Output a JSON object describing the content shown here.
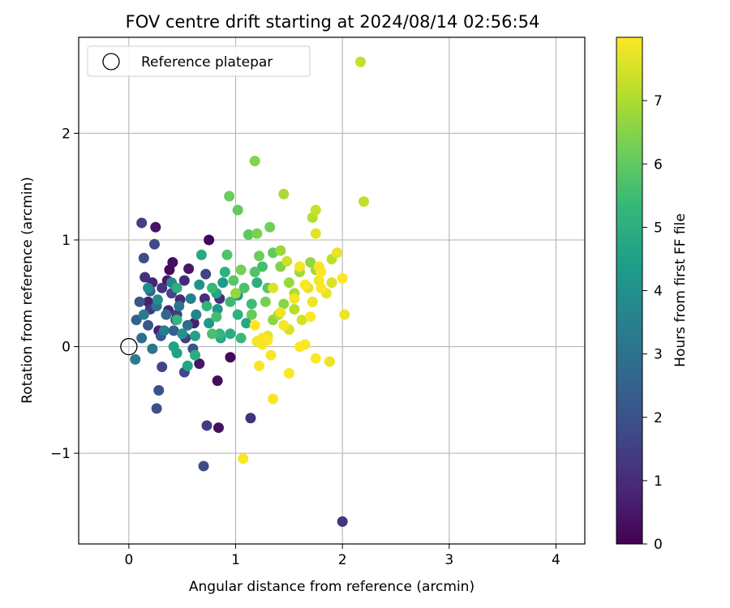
{
  "chart_data": {
    "type": "scatter",
    "title": "FOV centre drift starting at 2024/08/14 02:56:54",
    "xlabel": "Angular distance from reference (arcmin)",
    "ylabel": "Rotation from reference (arcmin)",
    "xlim": [
      -0.47,
      4.27
    ],
    "ylim": [
      -1.85,
      2.9
    ],
    "xticks": [
      0,
      1,
      2,
      3,
      4
    ],
    "xtick_labels": [
      "0",
      "1",
      "2",
      "3",
      "4"
    ],
    "yticks": [
      -1,
      0,
      1,
      2
    ],
    "ytick_labels": [
      "−1",
      "0",
      "1",
      "2"
    ],
    "grid": true,
    "legend": {
      "placement": "top-left",
      "entries": [
        "Reference platepar"
      ]
    },
    "reference_point": {
      "label": "Reference platepar",
      "x": 0,
      "y": 0
    },
    "colorbar": {
      "label": "Hours from first FF file",
      "range": [
        0,
        8.0
      ],
      "ticks": [
        0,
        1,
        2,
        3,
        4,
        5,
        6,
        7
      ],
      "tick_labels": [
        "0",
        "1",
        "2",
        "3",
        "4",
        "5",
        "6",
        "7"
      ],
      "colormap": "viridis"
    },
    "points": [
      [
        0.75,
        1.0,
        0.1
      ],
      [
        0.38,
        0.72,
        0.2
      ],
      [
        0.41,
        0.79,
        0.3
      ],
      [
        0.25,
        1.12,
        0.4
      ],
      [
        0.56,
        0.73,
        0.5
      ],
      [
        0.36,
        0.62,
        0.6
      ],
      [
        0.18,
        0.42,
        0.7
      ],
      [
        0.22,
        0.6,
        0.8
      ],
      [
        0.48,
        0.44,
        0.9
      ],
      [
        0.85,
        0.45,
        1.0
      ],
      [
        0.95,
        -0.1,
        0.15
      ],
      [
        0.83,
        -0.32,
        0.25
      ],
      [
        0.84,
        -0.76,
        0.35
      ],
      [
        0.66,
        -0.16,
        0.45
      ],
      [
        0.44,
        0.25,
        0.55
      ],
      [
        0.61,
        0.22,
        0.65
      ],
      [
        0.28,
        0.15,
        0.75
      ],
      [
        0.37,
        0.34,
        0.85
      ],
      [
        0.52,
        0.62,
        0.95
      ],
      [
        0.71,
        0.45,
        1.05
      ],
      [
        0.15,
        0.65,
        1.1
      ],
      [
        0.31,
        0.55,
        1.2
      ],
      [
        0.2,
        0.35,
        1.3
      ],
      [
        0.53,
        0.08,
        1.4
      ],
      [
        0.45,
        0.3,
        1.5
      ],
      [
        0.72,
        0.68,
        1.6
      ],
      [
        0.4,
        0.5,
        1.7
      ],
      [
        0.24,
        0.96,
        1.8
      ],
      [
        0.14,
        0.83,
        1.9
      ],
      [
        0.6,
        -0.02,
        2.0
      ],
      [
        1.14,
        -0.67,
        1.15
      ],
      [
        2.0,
        -1.64,
        1.25
      ],
      [
        0.73,
        -0.74,
        1.45
      ],
      [
        0.12,
        1.16,
        1.55
      ],
      [
        0.31,
        -0.19,
        1.65
      ],
      [
        0.52,
        -0.24,
        1.75
      ],
      [
        0.7,
        -1.12,
        1.85
      ],
      [
        0.26,
        -0.58,
        1.95
      ],
      [
        0.28,
        -0.41,
        2.05
      ],
      [
        0.1,
        0.42,
        2.15
      ],
      [
        0.18,
        0.2,
        2.2
      ],
      [
        0.3,
        0.1,
        2.3
      ],
      [
        0.42,
        0.15,
        2.4
      ],
      [
        0.07,
        0.25,
        2.5
      ],
      [
        0.2,
        0.52,
        2.6
      ],
      [
        0.35,
        0.3,
        2.7
      ],
      [
        0.55,
        0.2,
        2.8
      ],
      [
        0.12,
        0.08,
        2.9
      ],
      [
        0.26,
        0.38,
        3.0
      ],
      [
        0.47,
        0.38,
        3.1
      ],
      [
        0.22,
        -0.02,
        3.2
      ],
      [
        0.14,
        0.3,
        3.3
      ],
      [
        0.06,
        -0.12,
        3.35
      ],
      [
        0.33,
        0.15,
        3.4
      ],
      [
        0.58,
        0.45,
        3.5
      ],
      [
        0.63,
        0.3,
        3.6
      ],
      [
        0.4,
        0.6,
        3.7
      ],
      [
        0.18,
        0.55,
        3.8
      ],
      [
        0.27,
        0.44,
        3.9
      ],
      [
        0.5,
        0.12,
        4.0
      ],
      [
        0.66,
        0.58,
        4.1
      ],
      [
        0.83,
        0.35,
        4.2
      ],
      [
        0.75,
        0.22,
        4.3
      ],
      [
        0.88,
        0.6,
        4.35
      ],
      [
        1.02,
        0.48,
        4.4
      ],
      [
        0.45,
        -0.06,
        4.5
      ],
      [
        0.62,
        0.1,
        4.55
      ],
      [
        0.42,
        0.0,
        4.6
      ],
      [
        0.82,
        0.5,
        4.65
      ],
      [
        0.55,
        -0.18,
        4.7
      ],
      [
        1.1,
        0.22,
        4.75
      ],
      [
        0.86,
        0.08,
        4.8
      ],
      [
        0.68,
        0.86,
        4.85
      ],
      [
        0.95,
        0.12,
        4.9
      ],
      [
        0.62,
        -0.08,
        4.95
      ],
      [
        1.2,
        0.6,
        5.0
      ],
      [
        0.45,
        0.55,
        5.05
      ],
      [
        0.9,
        0.7,
        5.1
      ],
      [
        1.02,
        0.3,
        5.15
      ],
      [
        0.73,
        0.38,
        5.2
      ],
      [
        0.85,
        0.12,
        5.25
      ],
      [
        0.45,
        0.25,
        5.3
      ],
      [
        0.78,
        0.55,
        5.35
      ],
      [
        1.05,
        0.08,
        5.4
      ],
      [
        0.95,
        0.42,
        5.45
      ],
      [
        1.15,
        0.4,
        5.5
      ],
      [
        0.82,
        0.28,
        5.55
      ],
      [
        1.25,
        0.75,
        5.6
      ],
      [
        0.78,
        0.12,
        5.65
      ],
      [
        1.08,
        0.55,
        5.7
      ],
      [
        0.92,
        0.86,
        5.75
      ],
      [
        1.18,
        0.7,
        5.8
      ],
      [
        1.3,
        0.55,
        5.85
      ],
      [
        0.98,
        0.62,
        5.9
      ],
      [
        1.12,
        1.05,
        5.95
      ],
      [
        1.35,
        0.88,
        6.0
      ],
      [
        1.02,
        1.28,
        6.05
      ],
      [
        1.15,
        0.3,
        6.1
      ],
      [
        0.94,
        1.41,
        6.15
      ],
      [
        1.22,
        0.85,
        6.2
      ],
      [
        1.32,
        1.12,
        6.25
      ],
      [
        1.05,
        0.72,
        6.3
      ],
      [
        1.28,
        0.42,
        6.35
      ],
      [
        1.2,
        1.06,
        6.4
      ],
      [
        1.42,
        0.75,
        6.45
      ],
      [
        1.18,
        1.74,
        6.5
      ],
      [
        1.45,
        0.4,
        6.55
      ],
      [
        1.35,
        0.25,
        6.6
      ],
      [
        1.7,
        0.79,
        6.65
      ],
      [
        1.0,
        0.5,
        6.7
      ],
      [
        1.5,
        0.6,
        6.75
      ],
      [
        1.42,
        0.9,
        6.8
      ],
      [
        1.6,
        0.7,
        6.85
      ],
      [
        1.75,
        0.72,
        6.9
      ],
      [
        1.45,
        1.43,
        6.95
      ],
      [
        1.4,
        0.3,
        7.0
      ],
      [
        1.55,
        0.5,
        7.05
      ],
      [
        1.72,
        1.21,
        7.1
      ],
      [
        1.55,
        0.35,
        7.15
      ],
      [
        1.9,
        0.82,
        7.2
      ],
      [
        2.2,
        1.36,
        7.25
      ],
      [
        2.17,
        2.67,
        7.3
      ],
      [
        1.75,
        1.28,
        7.35
      ],
      [
        1.48,
        0.8,
        7.4
      ],
      [
        1.62,
        0.25,
        7.45
      ],
      [
        1.5,
        0.16,
        7.5
      ],
      [
        1.9,
        0.6,
        7.55
      ],
      [
        1.35,
        0.55,
        7.6
      ],
      [
        1.75,
        1.06,
        7.65
      ],
      [
        1.68,
        0.55,
        7.7
      ],
      [
        1.3,
        0.1,
        7.7
      ],
      [
        1.85,
        0.5,
        7.72
      ],
      [
        1.95,
        0.88,
        7.75
      ],
      [
        2.02,
        0.3,
        7.77
      ],
      [
        1.88,
        -0.14,
        7.78
      ],
      [
        1.72,
        0.42,
        7.8
      ],
      [
        1.42,
        0.32,
        7.82
      ],
      [
        1.6,
        0.75,
        7.85
      ],
      [
        1.78,
        0.62,
        7.87
      ],
      [
        1.55,
        0.45,
        7.88
      ],
      [
        1.33,
        -0.08,
        7.9
      ],
      [
        1.2,
        0.05,
        7.91
      ],
      [
        1.25,
        0.08,
        7.92
      ],
      [
        1.35,
        -0.49,
        7.93
      ],
      [
        1.22,
        -0.18,
        7.94
      ],
      [
        1.07,
        -1.05,
        7.95
      ],
      [
        1.5,
        -0.25,
        7.96
      ],
      [
        1.6,
        0.0,
        7.97
      ],
      [
        1.65,
        0.02,
        7.98
      ],
      [
        1.8,
        0.7,
        7.99
      ],
      [
        1.75,
        -0.11,
        7.99
      ],
      [
        2.0,
        0.64,
        7.99
      ],
      [
        1.7,
        0.28,
        7.99
      ],
      [
        1.18,
        0.2,
        7.98
      ],
      [
        1.8,
        0.55,
        7.97
      ],
      [
        1.65,
        0.58,
        7.96
      ],
      [
        1.3,
        0.06,
        7.95
      ],
      [
        1.25,
        0.02,
        7.94
      ],
      [
        1.45,
        0.2,
        7.93
      ],
      [
        1.78,
        0.75,
        7.92
      ]
    ]
  }
}
